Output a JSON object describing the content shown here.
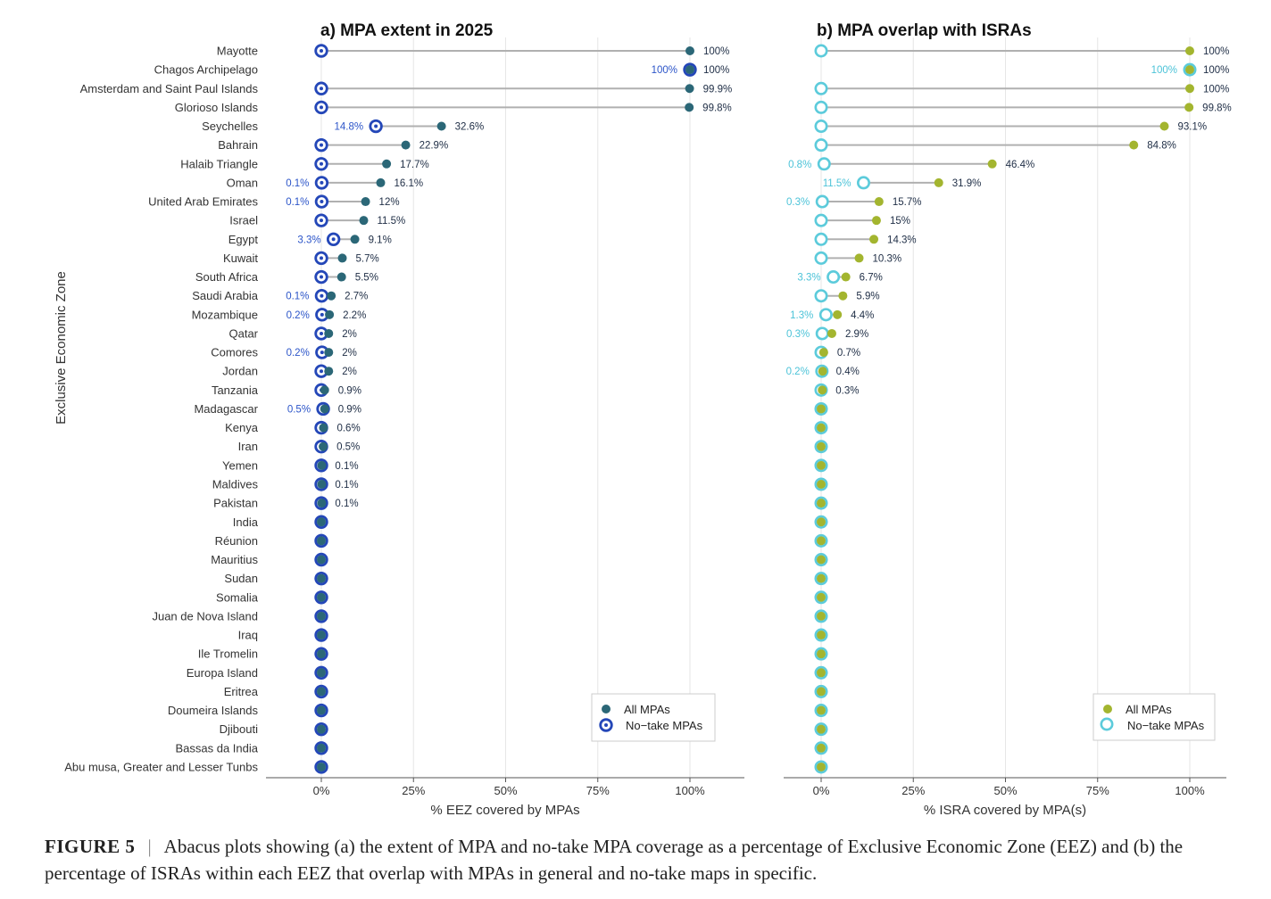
{
  "chart_data": [
    {
      "type": "dot",
      "title": "a) MPA extent in 2025",
      "xlabel": "% EEZ covered by MPAs",
      "ylabel": "Exclusive Economic Zone",
      "xlim": [
        -15,
        115
      ],
      "ticks": [
        0,
        25,
        50,
        75,
        100
      ],
      "tick_labels": [
        "0%",
        "25%",
        "50%",
        "75%",
        "100%"
      ],
      "legend": [
        "All MPAs",
        "No−take MPAs"
      ],
      "legend_position": "bottom-right",
      "colors": {
        "all": "#2b6777",
        "notake": "#2447b8",
        "notake_label": "#2c55c9",
        "all_label": "#1e2d45"
      },
      "categories": [
        "Mayotte",
        "Chagos Archipelago",
        "Amsterdam and Saint Paul Islands",
        "Glorioso Islands",
        "Seychelles",
        "Bahrain",
        "Halaib Triangle",
        "Oman",
        "United Arab Emirates",
        "Israel",
        "Egypt",
        "Kuwait",
        "South Africa",
        "Saudi Arabia",
        "Mozambique",
        "Qatar",
        "Comores",
        "Jordan",
        "Tanzania",
        "Madagascar",
        "Kenya",
        "Iran",
        "Yemen",
        "Maldives",
        "Pakistan",
        "India",
        "Réunion",
        "Mauritius",
        "Sudan",
        "Somalia",
        "Juan de Nova Island",
        "Iraq",
        "Ile Tromelin",
        "Europa Island",
        "Eritrea",
        "Doumeira Islands",
        "Djibouti",
        "Bassas da India",
        "Abu musa, Greater and Lesser Tunbs"
      ],
      "series": [
        {
          "name": "All MPAs",
          "values": [
            100,
            100,
            99.9,
            99.8,
            32.6,
            22.9,
            17.7,
            16.1,
            12,
            11.5,
            9.1,
            5.7,
            5.5,
            2.7,
            2.2,
            2,
            2,
            2,
            0.9,
            0.9,
            0.6,
            0.5,
            0.1,
            0.1,
            0.1,
            0,
            0,
            0,
            0,
            0,
            0,
            0,
            0,
            0,
            0,
            0,
            0,
            0,
            0
          ],
          "labels": [
            "100%",
            "100%",
            "99.9%",
            "99.8%",
            "32.6%",
            "22.9%",
            "17.7%",
            "16.1%",
            "12%",
            "11.5%",
            "9.1%",
            "5.7%",
            "5.5%",
            "2.7%",
            "2.2%",
            "2%",
            "2%",
            "2%",
            "0.9%",
            "0.9%",
            "0.6%",
            "0.5%",
            "0.1%",
            "0.1%",
            "0.1%",
            "",
            "",
            "",
            "",
            "",
            "",
            "",
            "",
            "",
            "",
            "",
            "",
            "",
            ""
          ]
        },
        {
          "name": "No−take MPAs",
          "values": [
            0,
            100,
            0,
            0,
            14.8,
            0,
            0,
            0.1,
            0.1,
            0,
            3.3,
            0,
            0,
            0.1,
            0.2,
            0,
            0.2,
            0,
            0,
            0.5,
            0,
            0,
            0,
            0,
            0,
            0,
            0,
            0,
            0,
            0,
            0,
            0,
            0,
            0,
            0,
            0,
            0,
            0,
            0
          ],
          "labels": [
            "",
            "100%",
            "",
            "",
            "14.8%",
            "",
            "",
            "0.1%",
            "0.1%",
            "",
            "3.3%",
            "",
            "",
            "0.1%",
            "0.2%",
            "",
            "0.2%",
            "",
            "",
            "0.5%",
            "",
            "",
            "",
            "",
            "",
            "",
            "",
            "",
            "",
            "",
            "",
            "",
            "",
            "",
            "",
            "",
            "",
            "",
            ""
          ]
        }
      ]
    },
    {
      "type": "dot",
      "title": "b) MPA overlap with ISRAs",
      "xlabel": "% ISRA covered by MPA(s)",
      "xlim": [
        -10,
        110
      ],
      "ticks": [
        0,
        25,
        50,
        75,
        100
      ],
      "tick_labels": [
        "0%",
        "25%",
        "50%",
        "75%",
        "100%"
      ],
      "legend": [
        "All MPAs",
        "No−take MPAs"
      ],
      "legend_position": "bottom-right",
      "colors": {
        "all": "#a3b52f",
        "notake": "#5ccbdb",
        "notake_label": "#4cc3d8",
        "all_label": "#1e2d45"
      },
      "series": [
        {
          "name": "All MPAs",
          "values": [
            100,
            100,
            100,
            99.8,
            93.1,
            84.8,
            46.4,
            31.9,
            15.7,
            15,
            14.3,
            10.3,
            6.7,
            5.9,
            4.4,
            2.9,
            0.7,
            0.4,
            0.3,
            0,
            0,
            0,
            0,
            0,
            0,
            0,
            0,
            0,
            0,
            0,
            0,
            0,
            0,
            0,
            0,
            0,
            0,
            0,
            0
          ],
          "labels": [
            "100%",
            "100%",
            "100%",
            "99.8%",
            "93.1%",
            "84.8%",
            "46.4%",
            "31.9%",
            "15.7%",
            "15%",
            "14.3%",
            "10.3%",
            "6.7%",
            "5.9%",
            "4.4%",
            "2.9%",
            "0.7%",
            "0.4%",
            "0.3%",
            "",
            "",
            "",
            "",
            "",
            "",
            "",
            "",
            "",
            "",
            "",
            "",
            "",
            "",
            "",
            "",
            "",
            "",
            "",
            ""
          ]
        },
        {
          "name": "No−take MPAs",
          "values": [
            0,
            100,
            0,
            0,
            0,
            0,
            0.8,
            11.5,
            0.3,
            0,
            0,
            0,
            3.3,
            0,
            1.3,
            0.3,
            0,
            0.2,
            0,
            0,
            0,
            0,
            0,
            0,
            0,
            0,
            0,
            0,
            0,
            0,
            0,
            0,
            0,
            0,
            0,
            0,
            0,
            0,
            0
          ],
          "labels": [
            "",
            "100%",
            "",
            "",
            "",
            "",
            "0.8%",
            "11.5%",
            "0.3%",
            "",
            "",
            "",
            "3.3%",
            "",
            "1.3%",
            "0.3%",
            "",
            "0.2%",
            "",
            "",
            "",
            "",
            "",
            "",
            "",
            "",
            "",
            "",
            "",
            "",
            "",
            "",
            "",
            "",
            "",
            "",
            "",
            "",
            ""
          ]
        }
      ]
    }
  ],
  "caption": {
    "label": "FIGURE 5",
    "separator": "|",
    "text": "Abacus plots showing (a) the extent of MPA and no-take MPA coverage as a percentage of Exclusive Economic Zone (EEZ) and (b) the percentage of ISRAs within each EEZ that overlap with MPAs in general and no-take maps in specific."
  }
}
